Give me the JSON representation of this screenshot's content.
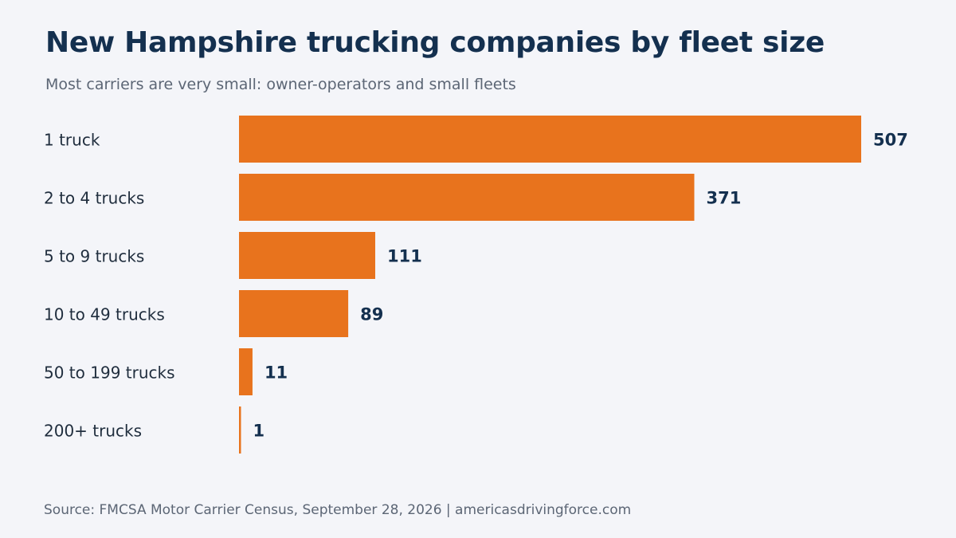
{
  "title": "New Hampshire trucking companies by fleet size",
  "subtitle": "Most carriers are very small: owner-operators and small fleets",
  "source": "Source: FMCSA Motor Carrier Census, September 28, 2026 | americasdrivingforce.com",
  "colors": {
    "bar": "#e8731d",
    "category_label": "#1f2d3d",
    "value_label": "#14304f",
    "title": "#14304f",
    "subtitle": "#5c6675",
    "background": "#f4f5f9"
  },
  "chart_data": {
    "type": "bar",
    "orientation": "horizontal",
    "categories": [
      "1 truck",
      "2 to 4 trucks",
      "5 to 9 trucks",
      "10 to 49 trucks",
      "50 to 199 trucks",
      "200+ trucks"
    ],
    "values": [
      507,
      371,
      111,
      89,
      11,
      1
    ],
    "xlim": [
      0,
      507
    ],
    "grid": false,
    "legend": "none",
    "data_labels": true
  }
}
